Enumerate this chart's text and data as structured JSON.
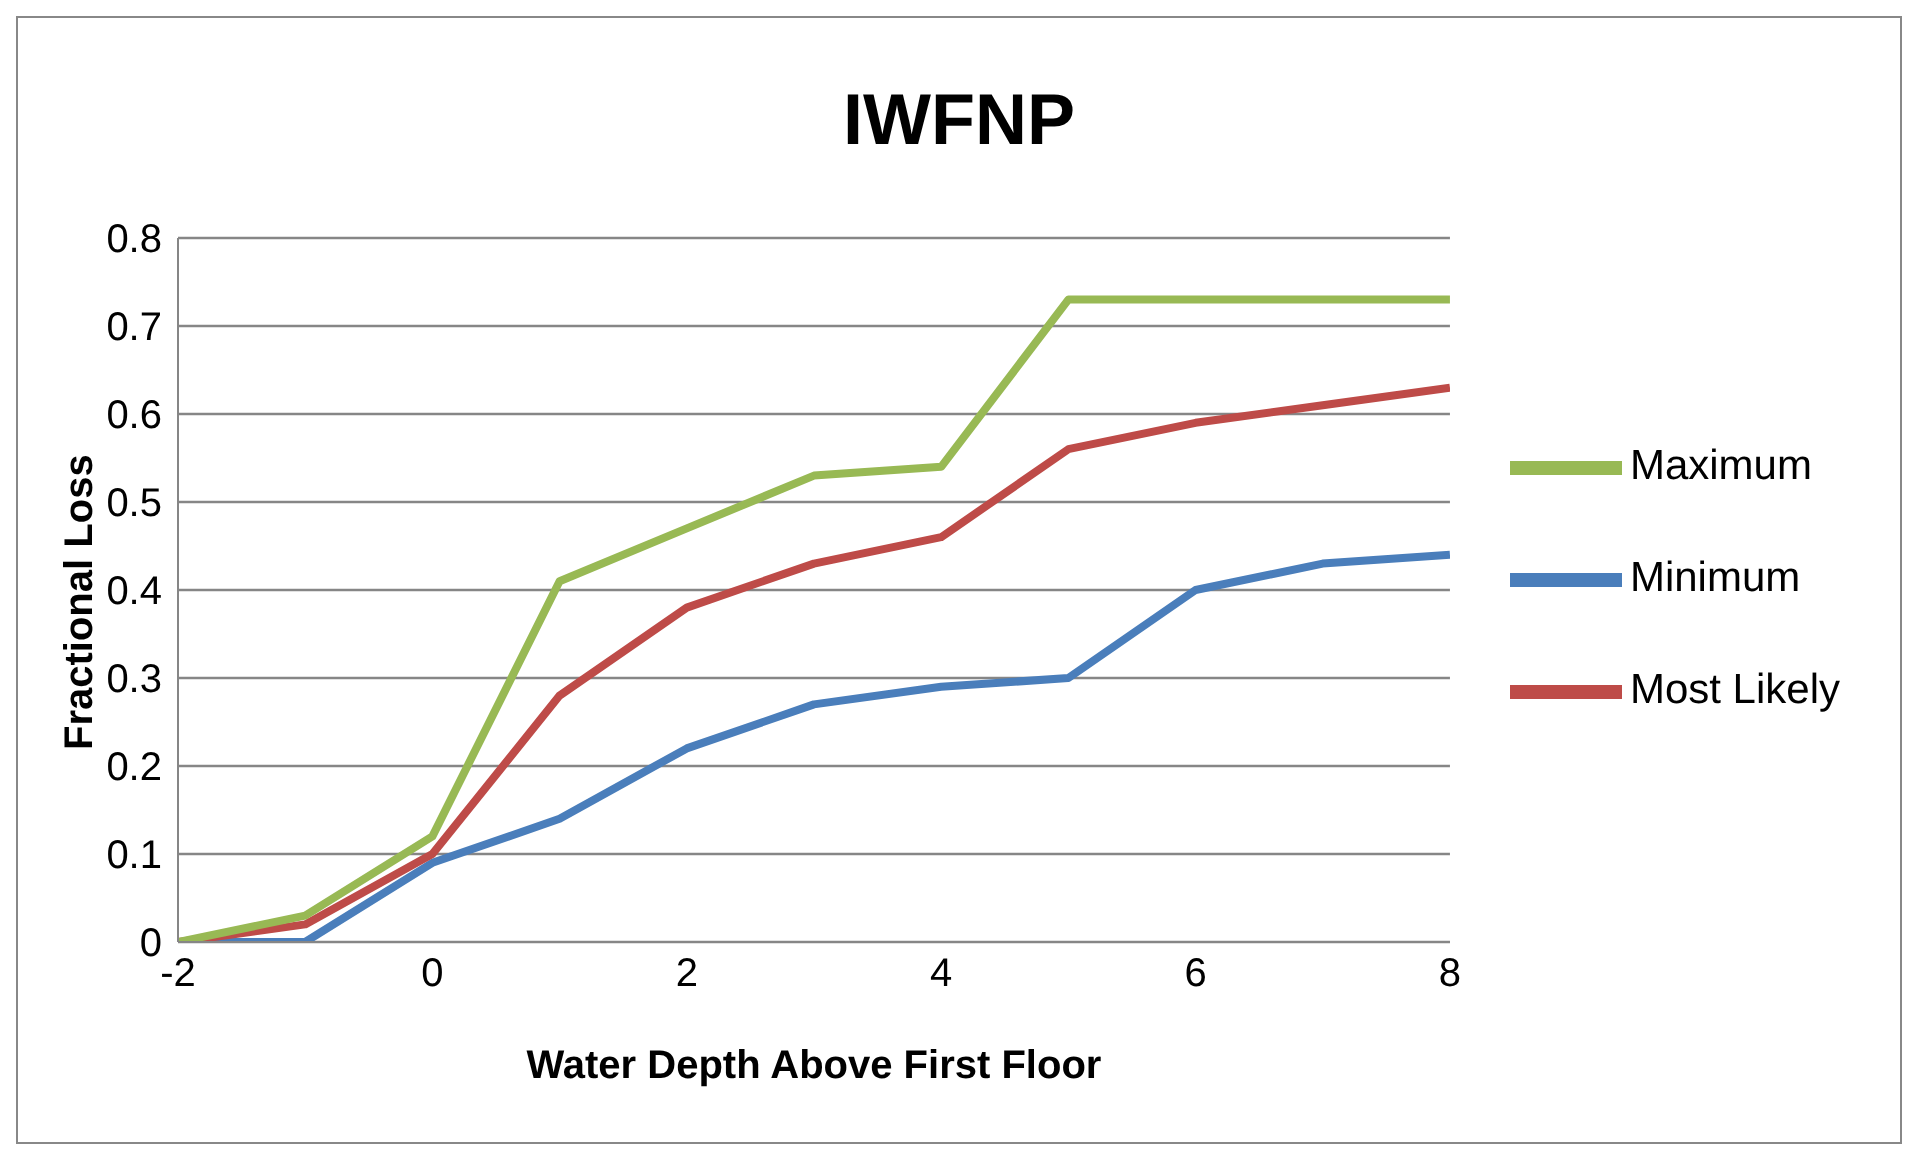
{
  "chart_data": {
    "type": "line",
    "title": "IWFNP",
    "xlabel": "Water Depth Above First Floor",
    "ylabel": "Fractional Loss",
    "x": [
      -2,
      -1,
      0,
      1,
      2,
      3,
      4,
      5,
      6,
      7,
      8
    ],
    "series": [
      {
        "name": "Minimum",
        "color": "#4a7ebb",
        "values": [
          0,
          0,
          0.09,
          0.14,
          0.22,
          0.27,
          0.29,
          0.3,
          0.4,
          0.43,
          0.44
        ]
      },
      {
        "name": "Most Likely",
        "color": "#be4b48",
        "values": [
          0,
          0.02,
          0.1,
          0.28,
          0.38,
          0.43,
          0.46,
          0.56,
          0.59,
          0.61,
          0.63
        ]
      },
      {
        "name": "Maximum",
        "color": "#98b954",
        "values": [
          0,
          0.03,
          0.12,
          0.41,
          0.47,
          0.53,
          0.54,
          0.73,
          0.73,
          0.73,
          0.73
        ]
      }
    ],
    "xlim": [
      -2,
      8
    ],
    "xticks": [
      -2,
      0,
      2,
      4,
      6,
      8
    ],
    "ylim": [
      0,
      0.8
    ],
    "yticks": [
      0,
      0.1,
      0.2,
      0.3,
      0.4,
      0.5,
      0.6,
      0.7,
      0.8
    ],
    "grid": "y",
    "legend": "right",
    "marker": "none",
    "line_style": "solid"
  }
}
